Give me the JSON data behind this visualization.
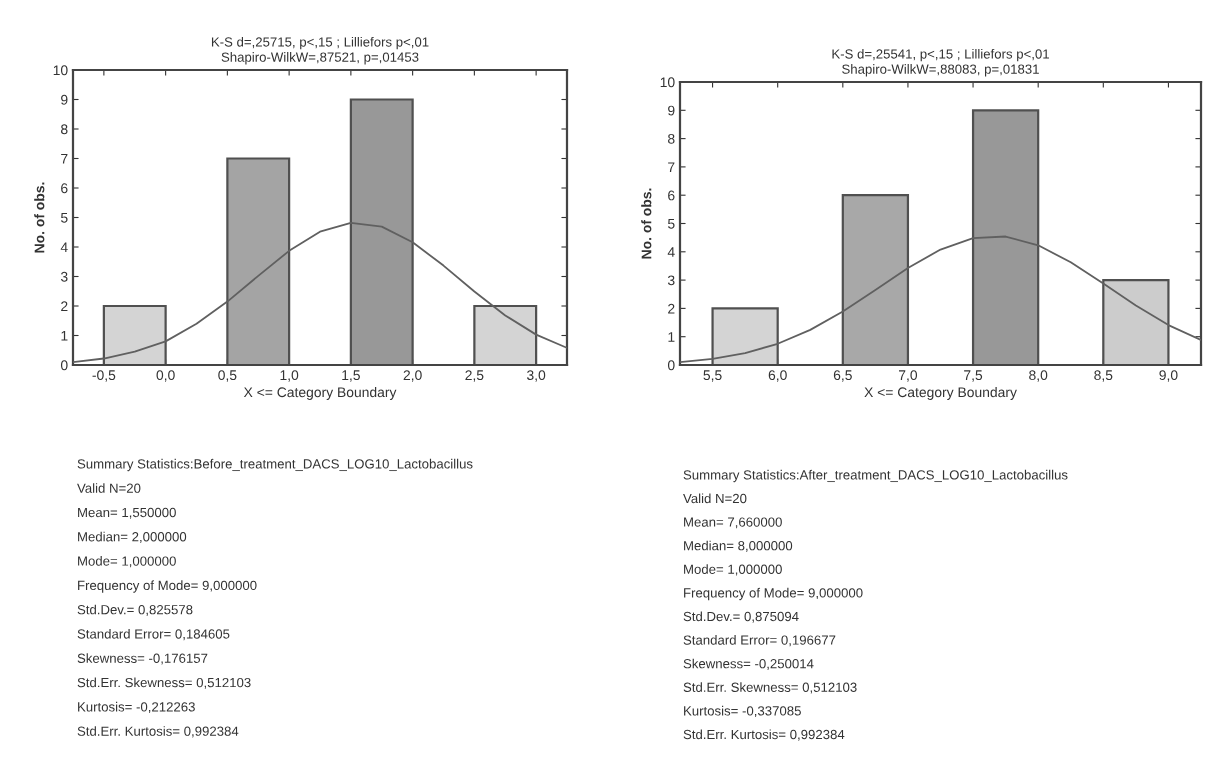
{
  "chart_data": [
    {
      "type": "histogram",
      "title": "K-S d=,25715, p<,15 ; Lilliefors p<,01\nShapiro-WilkW=,87521, p=,01453",
      "xlabel": "X <= Category Boundary",
      "ylabel": "No. of obs.",
      "bins": [
        -0.5,
        0.0,
        0.5,
        1.0,
        1.5,
        2.0,
        2.5,
        3.0
      ],
      "values": [
        2,
        0,
        7,
        0,
        9,
        0,
        2
      ],
      "colors": [
        "#d4d4d4",
        null,
        "#a4a4a4",
        null,
        "#989898",
        null,
        "#d4d4d4"
      ],
      "series": [
        {
          "type": "line",
          "color": "#606060",
          "x": [
            -0.75,
            -0.5,
            -0.25,
            0.0,
            0.25,
            0.5,
            0.75,
            1.0,
            1.25,
            1.5,
            1.75,
            2.0,
            2.25,
            2.5,
            2.75,
            3.0,
            3.25
          ],
          "values": [
            0.1,
            0.22,
            0.45,
            0.8,
            1.4,
            2.15,
            3.02,
            3.87,
            4.52,
            4.82,
            4.69,
            4.16,
            3.37,
            2.49,
            1.68,
            1.03,
            0.58
          ]
        }
      ],
      "xlim": [
        -0.75,
        3.25
      ],
      "ylim": [
        0,
        10
      ],
      "xticks": [
        {
          "value": -0.5,
          "label": "-0,5"
        },
        {
          "value": 0.0,
          "label": "0,0"
        },
        {
          "value": 0.5,
          "label": "0,5"
        },
        {
          "value": 1.0,
          "label": "1,0"
        },
        {
          "value": 1.5,
          "label": "1,5"
        },
        {
          "value": 2.0,
          "label": "2,0"
        },
        {
          "value": 2.5,
          "label": "2,5"
        },
        {
          "value": 3.0,
          "label": "3,0"
        }
      ],
      "yticks": [
        0,
        1,
        2,
        3,
        4,
        5,
        6,
        7,
        8,
        9,
        10
      ],
      "grid": false,
      "annotations": [
        "Summary Statistics:Before_treatment_DACS_LOG10_Lactobacillus",
        "Valid N=20",
        "Mean= 1,550000",
        "Median= 2,000000",
        "Mode= 1,000000",
        "Frequency of Mode= 9,000000",
        "Std.Dev.= 0,825578",
        "Standard Error= 0,184605",
        "Skewness= -0,176157",
        "Std.Err. Skewness= 0,512103",
        "Kurtosis= -0,212263",
        "Std.Err. Kurtosis= 0,992384"
      ]
    },
    {
      "type": "histogram",
      "title": "K-S d=,25541, p<,15 ; Lilliefors p<,01\nShapiro-WilkW=,88083, p=,01831",
      "xlabel": "X <= Category Boundary",
      "ylabel": "No. of obs.",
      "bins": [
        5.5,
        6.0,
        6.5,
        7.0,
        7.5,
        8.0,
        8.5,
        9.0
      ],
      "values": [
        2,
        0,
        6,
        0,
        9,
        0,
        3
      ],
      "colors": [
        "#d4d4d4",
        null,
        "#a8a8a8",
        null,
        "#989898",
        null,
        "#cccccc"
      ],
      "series": [
        {
          "type": "line",
          "color": "#606060",
          "x": [
            5.25,
            5.5,
            5.75,
            6.0,
            6.25,
            6.5,
            6.75,
            7.0,
            7.25,
            7.5,
            7.75,
            8.0,
            8.25,
            8.5,
            8.75,
            9.0,
            9.25
          ],
          "values": [
            0.1,
            0.22,
            0.42,
            0.75,
            1.24,
            1.89,
            2.65,
            3.43,
            4.08,
            4.48,
            4.54,
            4.23,
            3.63,
            2.88,
            2.1,
            1.41,
            0.88
          ]
        }
      ],
      "xlim": [
        5.25,
        9.25
      ],
      "ylim": [
        0,
        10
      ],
      "xticks": [
        {
          "value": 5.5,
          "label": "5,5"
        },
        {
          "value": 6.0,
          "label": "6,0"
        },
        {
          "value": 6.5,
          "label": "6,5"
        },
        {
          "value": 7.0,
          "label": "7,0"
        },
        {
          "value": 7.5,
          "label": "7,5"
        },
        {
          "value": 8.0,
          "label": "8,0"
        },
        {
          "value": 8.5,
          "label": "8,5"
        },
        {
          "value": 9.0,
          "label": "9,0"
        }
      ],
      "yticks": [
        0,
        1,
        2,
        3,
        4,
        5,
        6,
        7,
        8,
        9,
        10
      ],
      "grid": false,
      "annotations": [
        "Summary Statistics:After_treatment_DACS_LOG10_Lactobacillus",
        "Valid N=20",
        "Mean= 7,660000",
        "Median= 8,000000",
        "Mode= 1,000000",
        "Frequency of Mode= 9,000000",
        "Std.Dev.= 0,875094",
        "Standard Error= 0,196677",
        "Skewness= -0,250014",
        "Std.Err. Skewness= 0,512103",
        "Kurtosis= -0,337085",
        "Std.Err. Kurtosis= 0,992384"
      ]
    }
  ]
}
